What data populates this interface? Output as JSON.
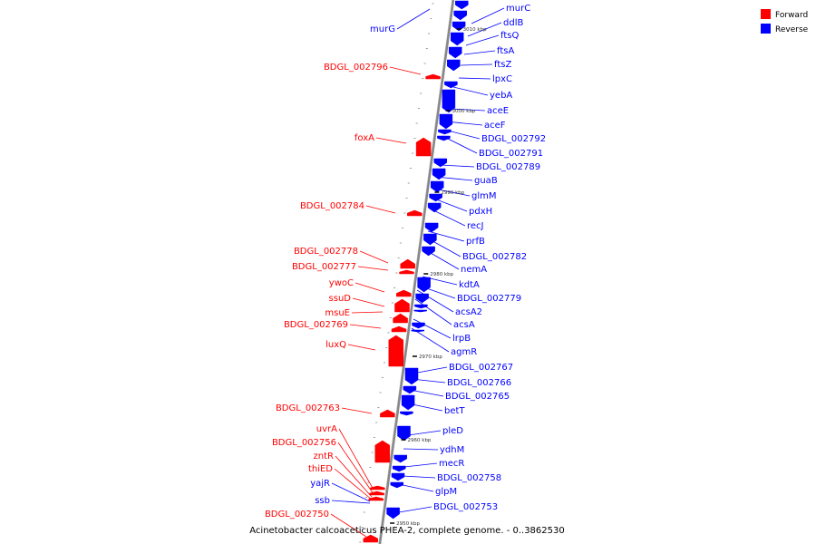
{
  "legend": [
    {
      "label": "Forward",
      "color": "#ff0000"
    },
    {
      "label": "Reverse",
      "color": "#0000ff"
    }
  ],
  "caption": "Acinetobacter calcoaceticus PHEA-2, complete genome. - 0..3862530",
  "colors": {
    "forward": "#ff0000",
    "reverse": "#0000ff",
    "axis": "#888888"
  },
  "ticks": [
    "3010 kbp",
    "3000 kbp",
    "2990 kbp",
    "2980 kbp",
    "2970 kbp",
    "2960 kbp",
    "2950 kbp"
  ],
  "genes": [
    {
      "name": "murC",
      "strand": "reverse"
    },
    {
      "name": "ddlB",
      "strand": "reverse"
    },
    {
      "name": "ftsQ",
      "strand": "reverse"
    },
    {
      "name": "ftsA",
      "strand": "reverse"
    },
    {
      "name": "ftsZ",
      "strand": "reverse"
    },
    {
      "name": "lpxC",
      "strand": "reverse"
    },
    {
      "name": "yebA",
      "strand": "reverse"
    },
    {
      "name": "aceE",
      "strand": "reverse"
    },
    {
      "name": "aceF",
      "strand": "reverse"
    },
    {
      "name": "BDGL_002792",
      "strand": "reverse"
    },
    {
      "name": "BDGL_002791",
      "strand": "reverse"
    },
    {
      "name": "BDGL_002789",
      "strand": "reverse"
    },
    {
      "name": "guaB",
      "strand": "reverse"
    },
    {
      "name": "glmM",
      "strand": "reverse"
    },
    {
      "name": "pdxH",
      "strand": "reverse"
    },
    {
      "name": "recJ",
      "strand": "reverse"
    },
    {
      "name": "prfB",
      "strand": "reverse"
    },
    {
      "name": "BDGL_002782",
      "strand": "reverse"
    },
    {
      "name": "nemA",
      "strand": "reverse"
    },
    {
      "name": "kdtA",
      "strand": "reverse"
    },
    {
      "name": "BDGL_002779",
      "strand": "reverse"
    },
    {
      "name": "acsA2",
      "strand": "reverse"
    },
    {
      "name": "acsA",
      "strand": "reverse"
    },
    {
      "name": "lrpB",
      "strand": "reverse"
    },
    {
      "name": "agmR",
      "strand": "reverse"
    },
    {
      "name": "BDGL_002767",
      "strand": "reverse"
    },
    {
      "name": "BDGL_002766",
      "strand": "reverse"
    },
    {
      "name": "BDGL_002765",
      "strand": "reverse"
    },
    {
      "name": "betT",
      "strand": "reverse"
    },
    {
      "name": "pleD",
      "strand": "reverse"
    },
    {
      "name": "ydhM",
      "strand": "reverse"
    },
    {
      "name": "mecR",
      "strand": "reverse"
    },
    {
      "name": "BDGL_002758",
      "strand": "reverse"
    },
    {
      "name": "glpM",
      "strand": "reverse"
    },
    {
      "name": "BDGL_002753",
      "strand": "reverse"
    },
    {
      "name": "murG",
      "strand": "reverse"
    },
    {
      "name": "BDGL_002796",
      "strand": "forward"
    },
    {
      "name": "foxA",
      "strand": "forward"
    },
    {
      "name": "BDGL_002784",
      "strand": "forward"
    },
    {
      "name": "BDGL_002778",
      "strand": "forward"
    },
    {
      "name": "BDGL_002777",
      "strand": "forward"
    },
    {
      "name": "ywoC",
      "strand": "forward"
    },
    {
      "name": "ssuD",
      "strand": "forward"
    },
    {
      "name": "msuE",
      "strand": "forward"
    },
    {
      "name": "BDGL_002769",
      "strand": "forward"
    },
    {
      "name": "luxQ",
      "strand": "forward"
    },
    {
      "name": "BDGL_002763",
      "strand": "forward"
    },
    {
      "name": "uvrA",
      "strand": "forward"
    },
    {
      "name": "BDGL_002756",
      "strand": "forward"
    },
    {
      "name": "zntR",
      "strand": "forward"
    },
    {
      "name": "thiED",
      "strand": "forward"
    },
    {
      "name": "yajR",
      "strand": "reverse"
    },
    {
      "name": "ssb",
      "strand": "reverse"
    },
    {
      "name": "BDGL_002750",
      "strand": "forward"
    }
  ]
}
